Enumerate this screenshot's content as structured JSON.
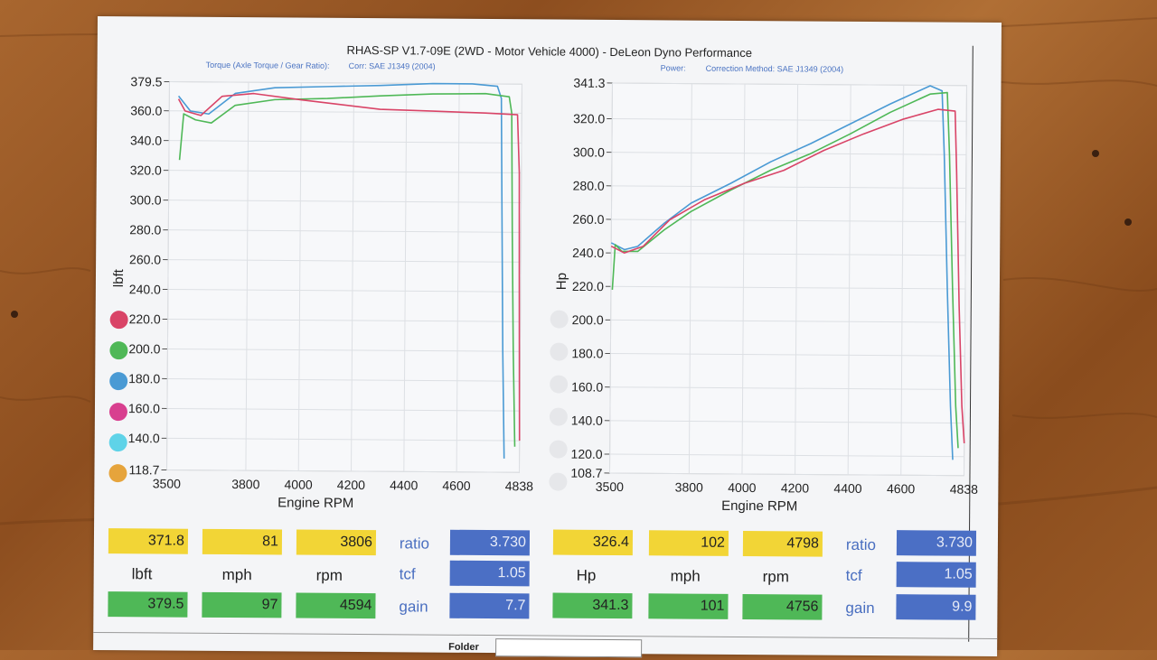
{
  "title": "RHAS-SP V1.7-09E  (2WD - Motor Vehicle 4000) - DeLeon Dyno Performance",
  "left_header": {
    "torque_label": "Torque (Axle Torque / Gear Ratio):",
    "corr_label": "Corr: SAE J1349 (2004)"
  },
  "right_header": {
    "power_label": "Power:",
    "corr_label": "Correction Method: SAE J1349 (2004)"
  },
  "colors": {
    "red": "#d94467",
    "green": "#4fb857",
    "blue": "#4a9ad4",
    "magenta": "#d83f8f",
    "cyan": "#5fd3e8",
    "orange": "#e6a43c"
  },
  "legend_colors": [
    "#d94467",
    "#4fb857",
    "#4a9ad4",
    "#d83f8f",
    "#5fd3e8",
    "#e6a43c"
  ],
  "chart_data": [
    {
      "type": "line",
      "xlabel": "Engine RPM",
      "ylabel": "lbft",
      "xlim": [
        3500,
        4838
      ],
      "ylim": [
        118.7,
        379.5
      ],
      "x_ticks": [
        "3500",
        "3800",
        "4000",
        "4200",
        "4400",
        "4600",
        "4838"
      ],
      "y_ticks": [
        "379.5",
        "360.0",
        "340.0",
        "320.0",
        "300.0",
        "280.0",
        "260.0",
        "240.0",
        "220.0",
        "200.0",
        "180.0",
        "160.0",
        "140.0",
        "118.7"
      ],
      "series": [
        {
          "color": "#4a9ad4",
          "points": [
            [
              3535,
              370
            ],
            [
              3580,
              360
            ],
            [
              3650,
              358
            ],
            [
              3750,
              372
            ],
            [
              3900,
              376
            ],
            [
              4100,
              377
            ],
            [
              4300,
              378
            ],
            [
              4500,
              379.5
            ],
            [
              4650,
              379.5
            ],
            [
              4745,
              378
            ],
            [
              4760,
              370
            ],
            [
              4765,
              300
            ],
            [
              4772,
              200
            ],
            [
              4780,
              128
            ]
          ]
        },
        {
          "color": "#4fb857",
          "points": [
            [
              3540,
              327
            ],
            [
              3555,
              358
            ],
            [
              3600,
              354
            ],
            [
              3660,
              352
            ],
            [
              3750,
              364
            ],
            [
              3900,
              368
            ],
            [
              4100,
              369
            ],
            [
              4300,
              371
            ],
            [
              4500,
              372.5
            ],
            [
              4700,
              373
            ],
            [
              4790,
              371
            ],
            [
              4800,
              360
            ],
            [
              4805,
              280
            ],
            [
              4812,
              200
            ],
            [
              4820,
              136
            ]
          ]
        },
        {
          "color": "#d94467",
          "points": [
            [
              3535,
              368
            ],
            [
              3560,
              360
            ],
            [
              3620,
              357
            ],
            [
              3700,
              370
            ],
            [
              3820,
              372
            ],
            [
              4000,
              368
            ],
            [
              4150,
              365
            ],
            [
              4300,
              362
            ],
            [
              4500,
              361
            ],
            [
              4700,
              360
            ],
            [
              4822,
              359
            ],
            [
              4830,
              320
            ],
            [
              4833,
              250
            ],
            [
              4836,
              180
            ],
            [
              4838,
              140
            ]
          ]
        }
      ]
    },
    {
      "type": "line",
      "xlabel": "Engine RPM",
      "ylabel": "Hp",
      "xlim": [
        3500,
        4838
      ],
      "ylim": [
        108.7,
        341.3
      ],
      "x_ticks": [
        "3500",
        "3800",
        "4000",
        "4200",
        "4400",
        "4600",
        "4838"
      ],
      "y_ticks": [
        "341.3",
        "320.0",
        "300.0",
        "280.0",
        "260.0",
        "240.0",
        "220.0",
        "200.0",
        "180.0",
        "160.0",
        "140.0",
        "120.0",
        "108.7"
      ],
      "series": [
        {
          "color": "#4a9ad4",
          "points": [
            [
              3500,
              246
            ],
            [
              3550,
              242
            ],
            [
              3600,
              244
            ],
            [
              3700,
              258
            ],
            [
              3800,
              270
            ],
            [
              3950,
              282
            ],
            [
              4100,
              295
            ],
            [
              4250,
              306
            ],
            [
              4400,
              318
            ],
            [
              4550,
              330
            ],
            [
              4700,
              341
            ],
            [
              4745,
              338
            ],
            [
              4755,
              300
            ],
            [
              4770,
              220
            ],
            [
              4785,
              150
            ],
            [
              4795,
              118
            ]
          ]
        },
        {
          "color": "#4fb857",
          "points": [
            [
              3505,
              218
            ],
            [
              3515,
              245
            ],
            [
              3540,
              241
            ],
            [
              3600,
              241
            ],
            [
              3700,
              254
            ],
            [
              3800,
              265
            ],
            [
              3950,
              278
            ],
            [
              4100,
              290
            ],
            [
              4250,
              300
            ],
            [
              4400,
              312
            ],
            [
              4550,
              325
            ],
            [
              4700,
              336
            ],
            [
              4765,
              337
            ],
            [
              4775,
              300
            ],
            [
              4790,
              220
            ],
            [
              4805,
              150
            ],
            [
              4815,
              125
            ]
          ]
        },
        {
          "color": "#d94467",
          "points": [
            [
              3500,
              244
            ],
            [
              3550,
              240
            ],
            [
              3620,
              244
            ],
            [
              3720,
              260
            ],
            [
              3850,
              272
            ],
            [
              4000,
              282
            ],
            [
              4150,
              290
            ],
            [
              4300,
              302
            ],
            [
              4450,
              312
            ],
            [
              4600,
              321
            ],
            [
              4730,
              327
            ],
            [
              4795,
              326
            ],
            [
              4802,
              290
            ],
            [
              4815,
              210
            ],
            [
              4828,
              150
            ],
            [
              4838,
              128
            ]
          ]
        }
      ]
    }
  ],
  "summary_left": {
    "peak_row": {
      "v1": "371.8",
      "v2": "81",
      "v3": "3806"
    },
    "unit_row": {
      "v1": "lbft",
      "v2": "mph",
      "v3": "rpm"
    },
    "max_row": {
      "v1": "379.5",
      "v2": "97",
      "v3": "4594"
    },
    "side_labels": {
      "ratio": "ratio",
      "tcf": "tcf",
      "gain": "gain"
    },
    "side_values": {
      "ratio": "3.730",
      "tcf": "1.05",
      "gain": "7.7"
    }
  },
  "summary_right": {
    "peak_row": {
      "v1": "326.4",
      "v2": "102",
      "v3": "4798"
    },
    "unit_row": {
      "v1": "Hp",
      "v2": "mph",
      "v3": "rpm"
    },
    "max_row": {
      "v1": "341.3",
      "v2": "101",
      "v3": "4756"
    },
    "side_labels": {
      "ratio": "ratio",
      "tcf": "tcf",
      "gain": "gain"
    },
    "side_values": {
      "ratio": "3.730",
      "tcf": "1.05",
      "gain": "9.9"
    }
  },
  "footer": {
    "folder_label": "Folder"
  }
}
